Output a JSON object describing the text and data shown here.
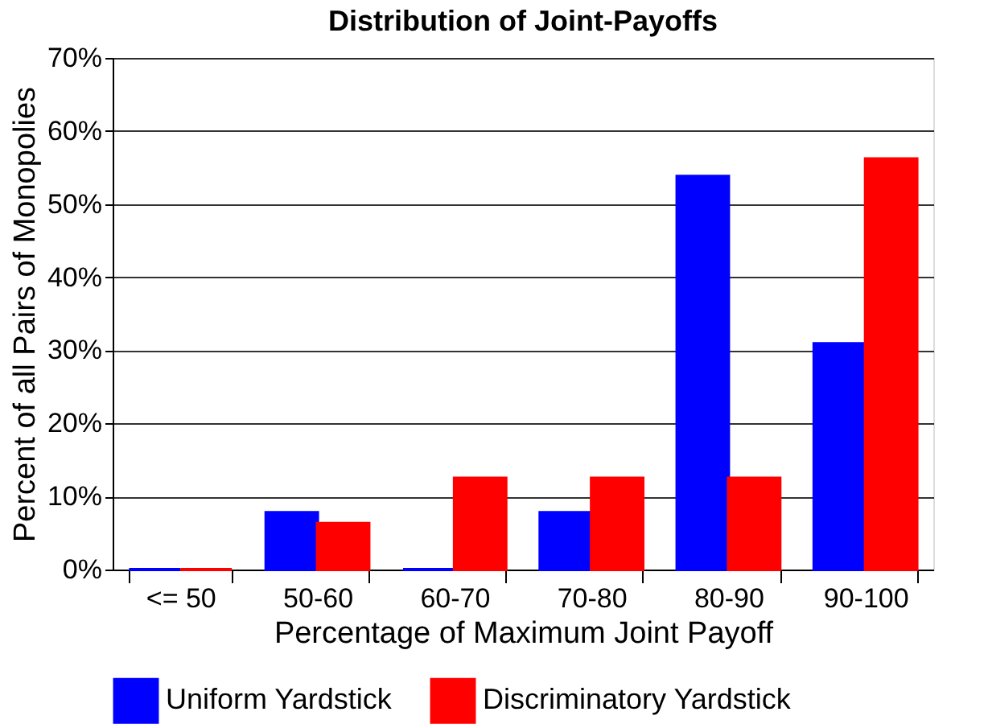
{
  "chart_data": {
    "type": "bar",
    "title": "Distribution of Joint-Payoffs",
    "xlabel": "Percentage of Maximum Joint Payoff",
    "ylabel": "Percent of all Pairs of Monopolies",
    "categories": [
      "<= 50",
      "50-60",
      "60-70",
      "70-80",
      "80-90",
      "90-100"
    ],
    "series": [
      {
        "name": "Uniform Yardstick",
        "color": "#0000ff",
        "values": [
          0,
          7.8,
          0,
          7.8,
          53.8,
          30.9
        ]
      },
      {
        "name": "Discriminatory Yardstick",
        "color": "#ff0000",
        "values": [
          0,
          6.3,
          12.5,
          12.5,
          12.5,
          56.2
        ]
      }
    ],
    "ylim": [
      0,
      70
    ],
    "yticks": [
      {
        "value": 0,
        "label": "0%"
      },
      {
        "value": 10,
        "label": "10%"
      },
      {
        "value": 20,
        "label": "20%"
      },
      {
        "value": 30,
        "label": "30%"
      },
      {
        "value": 40,
        "label": "40%"
      },
      {
        "value": 50,
        "label": "50%"
      },
      {
        "value": 60,
        "label": "60%"
      },
      {
        "value": 70,
        "label": "70%"
      }
    ],
    "grid": "y",
    "legend": "bottom"
  }
}
